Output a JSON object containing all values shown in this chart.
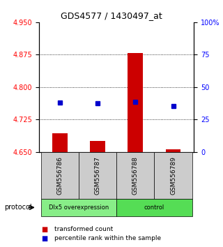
{
  "title": "GDS4577 / 1430497_at",
  "samples": [
    "GSM556786",
    "GSM556787",
    "GSM556788",
    "GSM556789"
  ],
  "red_bar_values": [
    4.693,
    4.675,
    4.878,
    4.656
  ],
  "blue_square_values": [
    4.764,
    4.762,
    4.766,
    4.756
  ],
  "bar_baseline": 4.65,
  "ylim_left": [
    4.65,
    4.95
  ],
  "ylim_right": [
    0,
    100
  ],
  "yticks_left": [
    4.65,
    4.725,
    4.8,
    4.875,
    4.95
  ],
  "yticks_right": [
    0,
    25,
    50,
    75,
    100
  ],
  "ytick_labels_right": [
    "0",
    "25",
    "50",
    "75",
    "100%"
  ],
  "groups": [
    {
      "label": "Dlx5 overexpression",
      "color": "#88ee88"
    },
    {
      "label": "control",
      "color": "#55dd55"
    }
  ],
  "bar_color": "#cc0000",
  "square_color": "#0000cc",
  "bar_width": 0.4,
  "sample_box_color": "#cccccc",
  "legend_red": "transformed count",
  "legend_blue": "percentile rank within the sample",
  "protocol_label": "protocol"
}
